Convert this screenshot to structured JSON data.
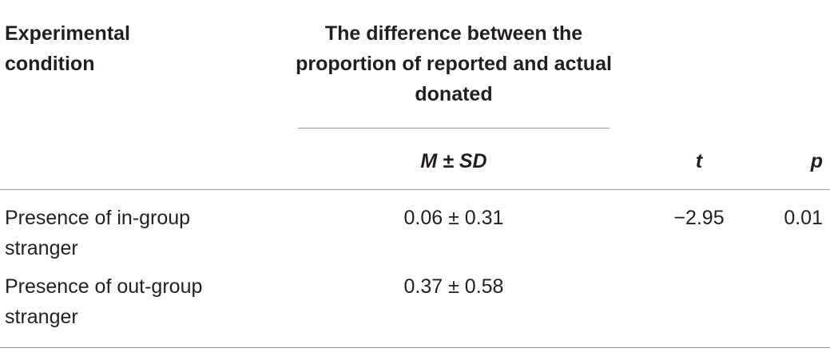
{
  "table": {
    "header": {
      "condition": "Experimental condition",
      "difference": "The difference between the proportion of reported and actual donated",
      "m_sd": "M ± SD",
      "t": "t",
      "p": "p"
    },
    "rows": [
      {
        "condition": "Presence of in-group stranger",
        "m_sd": "0.06 ± 0.31",
        "t": "−2.95",
        "p": "0.01"
      },
      {
        "condition": "Presence of out-group stranger",
        "m_sd": "0.37 ± 0.58"
      }
    ]
  }
}
